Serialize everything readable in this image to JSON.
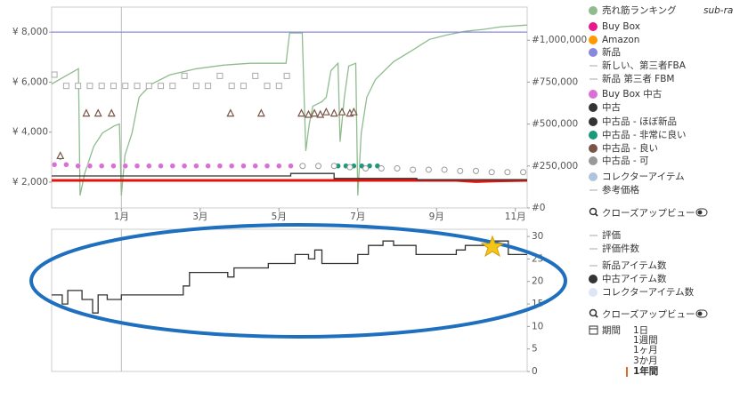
{
  "chart_data": [
    {
      "type": "line",
      "xlim": [
        -0.77,
        11.3
      ],
      "xticks": [
        {
          "value": 1,
          "label": "1月"
        },
        {
          "value": 3,
          "label": "3月"
        },
        {
          "value": 5,
          "label": "5月"
        },
        {
          "value": 7,
          "label": "7月"
        },
        {
          "value": 9,
          "label": "9月"
        },
        {
          "value": 11,
          "label": "11月"
        }
      ],
      "ylim": [
        970,
        9000
      ],
      "yticks": [
        {
          "value": 2000,
          "label": "¥ 2,000"
        },
        {
          "value": 4000,
          "label": "¥ 4,000"
        },
        {
          "value": 6000,
          "label": "¥ 6,000"
        },
        {
          "value": 8000,
          "label": "¥ 8,000"
        }
      ],
      "y2lim": [
        0,
        1197000
      ],
      "y2ticks": [
        {
          "value": 0,
          "label": "#0"
        },
        {
          "value": 250000,
          "label": "#250,000"
        },
        {
          "value": 500000,
          "label": "#500,000"
        },
        {
          "value": 750000,
          "label": "#750,000"
        },
        {
          "value": 1000000,
          "label": "#1,000,000"
        }
      ],
      "vlines": [
        1
      ],
      "grid": false,
      "series": [
        {
          "name": "売れ筋ランキング",
          "color": "#8fbc8f",
          "style": "line",
          "axis": "y2",
          "x": [
            -0.77,
            -0.09,
            -0.05,
            0.07,
            0.3,
            0.52,
            0.82,
            0.95,
            1.0,
            1.09,
            1.27,
            1.36,
            1.45,
            1.55,
            1.77,
            2.23,
            2.91,
            3.59,
            4.27,
            5.18,
            5.27,
            5.59,
            5.68,
            5.77,
            5.86,
            6.09,
            6.2,
            6.32,
            6.5,
            6.55,
            6.66,
            6.77,
            6.95,
            7.0,
            7.09,
            7.23,
            7.45,
            7.91,
            8.36,
            8.82,
            9.27,
            9.73,
            10.18,
            10.64,
            11.3
          ],
          "values": [
            739000,
            830000,
            74000,
            207000,
            367000,
            447000,
            489000,
            500000,
            74000,
            314000,
            447000,
            553000,
            660000,
            686000,
            739000,
            793000,
            830000,
            851000,
            862000,
            862000,
            1043000,
            1043000,
            340000,
            500000,
            606000,
            633000,
            660000,
            819000,
            862000,
            394000,
            660000,
            846000,
            862000,
            74000,
            447000,
            660000,
            766000,
            872000,
            936000,
            1005000,
            1032000,
            1053000,
            1064000,
            1080000,
            1090000
          ]
        },
        {
          "name": "Buy Box",
          "color": "#e8178a",
          "line_color": "#e3120b",
          "style": "line",
          "width": 3,
          "x": [
            -0.77,
            9.5,
            10.0,
            10.5,
            11.3
          ],
          "values": [
            2070,
            2070,
            2020,
            2050,
            2070
          ]
        },
        {
          "name": "Amazon",
          "color": "#ff9900"
        },
        {
          "name": "新品",
          "color": "#8888dd",
          "style": "line",
          "x": [
            -0.77,
            11.3
          ],
          "values": [
            8000,
            8000
          ]
        },
        {
          "name": "新しい、第三者FBA",
          "color": "#aaaaaa",
          "legend_marker": "line",
          "style": "squares",
          "x": [
            -0.7,
            -0.4,
            -0.1,
            0.2,
            0.5,
            0.8,
            1.1,
            1.4,
            1.7,
            2.0,
            2.3,
            2.6,
            2.9,
            3.2,
            3.5,
            3.8,
            4.1,
            4.4,
            4.7,
            5.0,
            5.2
          ],
          "values": [
            6300,
            5850,
            5850,
            5850,
            5850,
            5850,
            5850,
            5850,
            5850,
            5850,
            5850,
            6250,
            5850,
            5850,
            6250,
            5850,
            5850,
            6250,
            5850,
            5850,
            6250
          ]
        },
        {
          "name": "新品 第三者 FBM",
          "color": "#aaaaaa",
          "legend_marker": "line"
        },
        {
          "name": "Buy Box 中古",
          "color": "#da70d6",
          "style": "dots",
          "x": [
            -0.7,
            -0.4,
            -0.1,
            0.2,
            0.5,
            0.8,
            1.1,
            1.4,
            1.7,
            2.0,
            2.3,
            2.6,
            2.9,
            3.2,
            3.5,
            3.8,
            4.1,
            4.4,
            4.7,
            5.0,
            5.3
          ],
          "values": [
            2700,
            2700,
            2650,
            2650,
            2650,
            2650,
            2650,
            2650,
            2650,
            2650,
            2650,
            2650,
            2650,
            2650,
            2650,
            2650,
            2650,
            2650,
            2650,
            2650,
            2650
          ]
        },
        {
          "name": "中古",
          "color": "#333333",
          "style": "line",
          "x": [
            -0.77,
            5.3,
            5.3,
            6.4,
            6.4,
            8.5,
            8.5,
            11.3
          ],
          "values": [
            2250,
            2250,
            2350,
            2350,
            2150,
            2150,
            2100,
            2100
          ]
        },
        {
          "name": "中古品 - ほぼ新品",
          "color": "#333333"
        },
        {
          "name": "中古品 - 非常に良い",
          "color": "#1a9a7a",
          "style": "dots",
          "x": [
            -0.55,
            6.5,
            6.7,
            6.9,
            7.1,
            7.3,
            7.5
          ],
          "values": [
            3000,
            2650,
            2650,
            2650,
            2650,
            2650,
            2650
          ]
        },
        {
          "name": "中古品 - 良い",
          "color": "#795548",
          "style": "triangles",
          "x": [
            -0.55,
            0.11,
            0.41,
            0.75,
            3.77,
            4.55,
            5.57,
            5.75,
            5.9,
            6.05,
            6.2,
            6.4,
            6.6,
            6.8,
            6.9
          ],
          "values": [
            3050,
            4750,
            4750,
            4750,
            4750,
            4750,
            4750,
            4700,
            4750,
            4700,
            4800,
            4750,
            4800,
            4750,
            4800
          ]
        },
        {
          "name": "中古品 - 可",
          "color": "#999999",
          "style": "circles",
          "x": [
            5.6,
            6.0,
            6.4,
            6.8,
            7.2,
            7.6,
            8.0,
            8.4,
            8.8,
            9.2,
            9.6,
            10.0,
            10.4,
            10.8,
            11.2
          ],
          "values": [
            2650,
            2650,
            2650,
            2600,
            2550,
            2550,
            2550,
            2500,
            2500,
            2500,
            2450,
            2450,
            2400,
            2400,
            2400
          ]
        },
        {
          "name": "コレクターアイテム",
          "color": "#b0c4de"
        },
        {
          "name": "参考価格",
          "color": "#aaaaaa",
          "legend_marker": "line"
        }
      ]
    },
    {
      "type": "line",
      "xlim": [
        -0.77,
        11.3
      ],
      "ylim": [
        0,
        31.6
      ],
      "yticks": [
        0,
        5,
        10,
        15,
        20,
        25,
        30
      ],
      "yticks_side": "right",
      "vlines": [
        1
      ],
      "grid": false,
      "series": [
        {
          "name": "評価",
          "color": "#aaaaaa",
          "legend_marker": "line"
        },
        {
          "name": "評価件数",
          "color": "#aaaaaa",
          "legend_marker": "line"
        },
        {
          "name": "新品アイテム数",
          "color": "#aaaaaa",
          "legend_marker": "line"
        },
        {
          "name": "中古アイテム数",
          "color": "#333333",
          "style": "line",
          "x": [
            -0.77,
            -0.5,
            -0.5,
            -0.36,
            -0.36,
            0,
            0,
            0.27,
            0.27,
            0.41,
            0.41,
            0.64,
            0.64,
            1,
            1,
            2.57,
            2.57,
            2.73,
            2.73,
            3.7,
            3.7,
            3.86,
            3.86,
            4.73,
            4.73,
            5.41,
            5.41,
            5.75,
            5.75,
            5.91,
            5.91,
            6.09,
            6.09,
            7,
            7,
            7.27,
            7.27,
            7.64,
            7.64,
            7.91,
            7.91,
            8.48,
            8.48,
            9.5,
            9.5,
            9.73,
            9.73,
            10.36,
            10.36,
            10.82,
            10.82,
            11.3
          ],
          "values": [
            17,
            17,
            15,
            15,
            18,
            18,
            16,
            16,
            13,
            13,
            17,
            17,
            16,
            16,
            17,
            17,
            19,
            19,
            22,
            22,
            21,
            21,
            23,
            23,
            24,
            24,
            26,
            26,
            25,
            25,
            27,
            27,
            24,
            24,
            26,
            26,
            28,
            28,
            29,
            29,
            28,
            28,
            26,
            26,
            27,
            27,
            28,
            28,
            29,
            29,
            26,
            26
          ]
        },
        {
          "name": "コレクターアイテム数",
          "color": "#dde6f5"
        }
      ]
    }
  ],
  "sidebar": {
    "rank_sub": "sub-ra",
    "closeups": [
      "クローズアップビュー",
      "クローズアップビュー"
    ],
    "period_label": "期間",
    "periods": [
      "1日",
      "1週間",
      "1ヶ月",
      "3か月",
      "1年間"
    ],
    "selected_period": 4
  }
}
